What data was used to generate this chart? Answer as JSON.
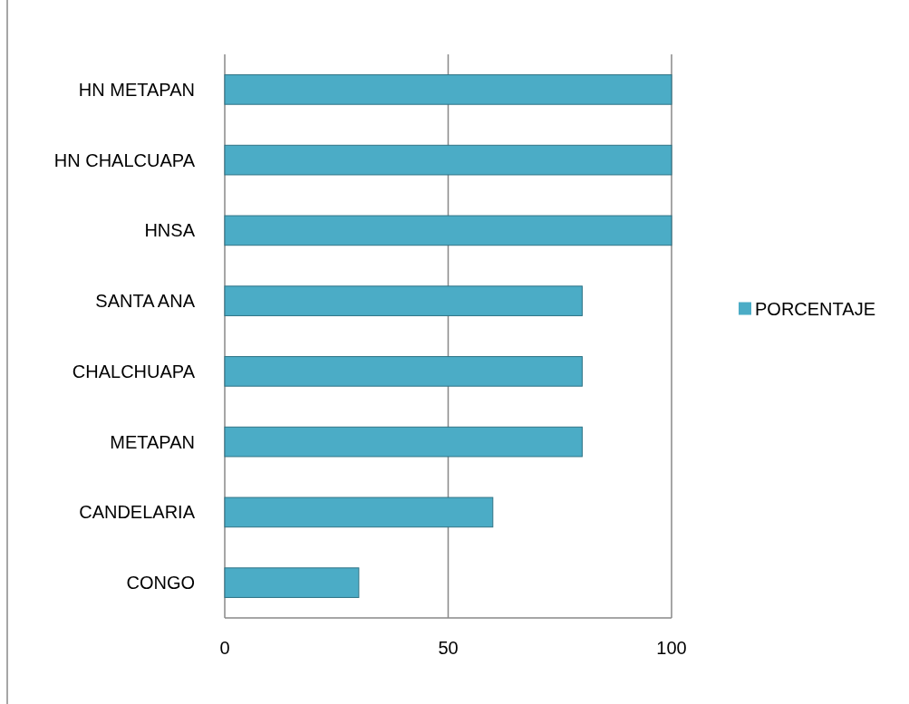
{
  "chart_data": {
    "type": "bar",
    "orientation": "horizontal",
    "categories": [
      "HN METAPAN",
      "HN CHALCUAPA",
      "HNSA",
      "SANTA ANA",
      "CHALCHUAPA",
      "METAPAN",
      "CANDELARIA",
      "CONGO"
    ],
    "series": [
      {
        "name": "PORCENTAJE",
        "color": "#4bacc6",
        "values": [
          100,
          100,
          100,
          80,
          80,
          80,
          60,
          30
        ]
      }
    ],
    "xlim": [
      0,
      100
    ],
    "xticks": [
      0,
      50,
      100
    ],
    "grid": "x",
    "legend": "right"
  }
}
